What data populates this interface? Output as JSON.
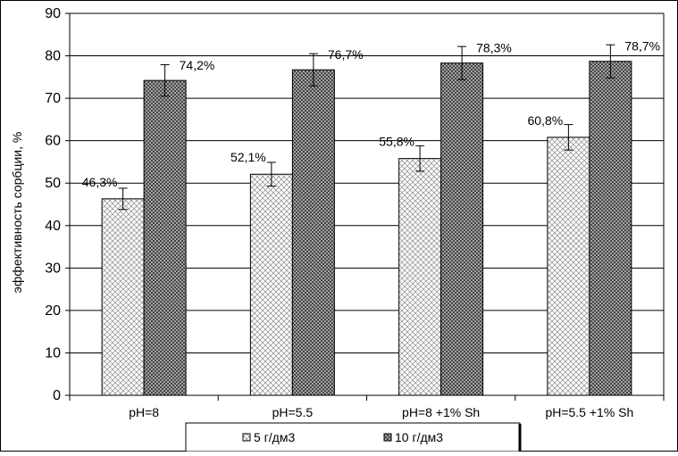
{
  "chart_data": {
    "type": "bar",
    "title": "",
    "xlabel": "",
    "ylabel": "эффективность сорбции, %",
    "ylim": [
      0,
      90
    ],
    "yticks": [
      "0",
      "10",
      "20",
      "30",
      "40",
      "50",
      "60",
      "70",
      "80",
      "90"
    ],
    "grid": true,
    "legend_position": "bottom",
    "categories": [
      "pH=8",
      "pH=5.5",
      "pH=8 +1% Sh",
      "pH=5.5 +1% Sh"
    ],
    "series": [
      {
        "name": "5 г/дм3",
        "values": [
          46.3,
          52.1,
          55.8,
          60.8
        ],
        "labels": [
          "46,3%",
          "52,1%",
          "55,8%",
          "60,8%"
        ],
        "error": [
          2.5,
          2.8,
          3.0,
          3.0
        ],
        "fill": "light-crosshatch"
      },
      {
        "name": "10 г/дм3",
        "values": [
          74.2,
          76.7,
          78.3,
          78.7
        ],
        "labels": [
          "74,2%",
          "76,7%",
          "78,3%",
          "78,7%"
        ],
        "error": [
          3.7,
          3.8,
          3.9,
          3.9
        ],
        "fill": "dark-crosshatch"
      }
    ]
  }
}
